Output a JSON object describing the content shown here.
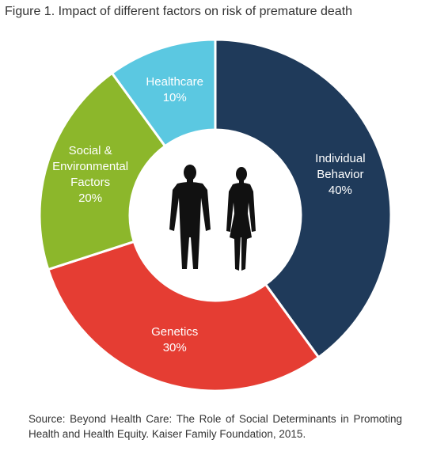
{
  "chart_data": {
    "type": "donut",
    "title": "Figure 1. Impact of different factors on risk of premature death",
    "categories": [
      "Individual Behavior",
      "Genetics",
      "Social & Environmental Factors",
      "Healthcare"
    ],
    "values": [
      40,
      30,
      20,
      10
    ],
    "value_labels": [
      "40%",
      "30%",
      "20%",
      "10%"
    ],
    "colors": [
      "#1f3a5a",
      "#e53d33",
      "#8cb72b",
      "#5bc8e1"
    ],
    "source": "Source: Beyond Health Care: The Role of Social Determinants in Promoting Health and Health Equity. Kaiser Family Foundation, 2015."
  }
}
